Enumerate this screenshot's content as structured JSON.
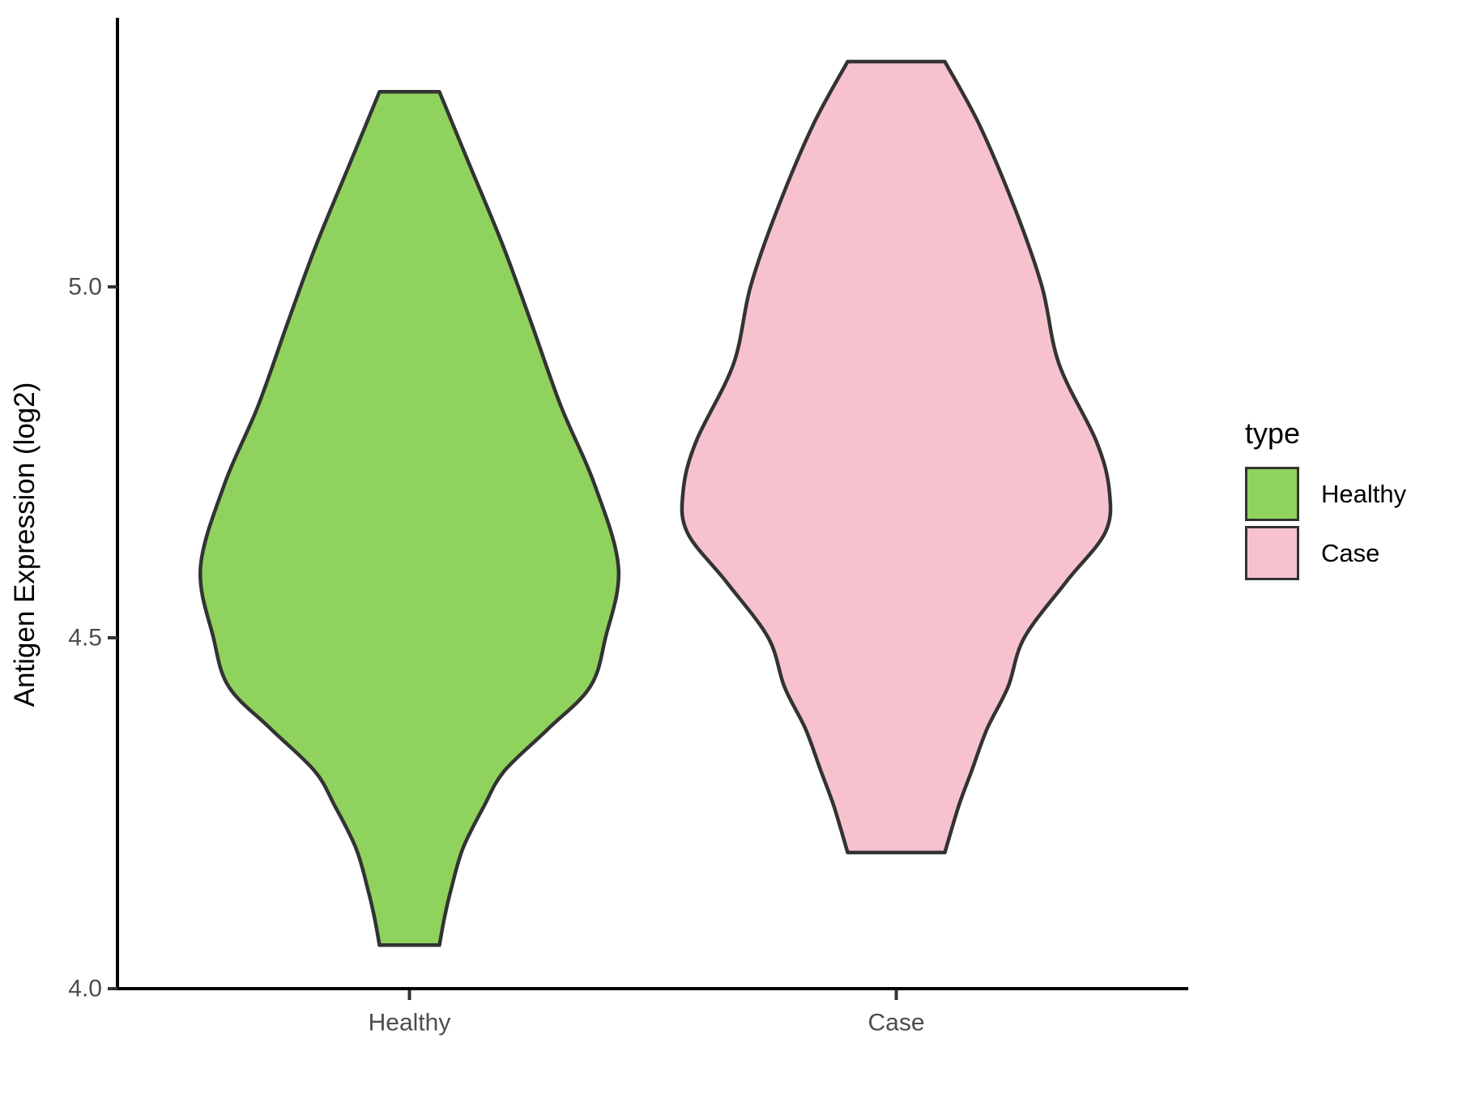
{
  "chart_data": {
    "type": "violin",
    "title": "",
    "xlabel": "",
    "ylabel": "Antigen Expression (log2)",
    "categories": [
      "Healthy",
      "Case"
    ],
    "y_ticks": [
      {
        "label": "5.0",
        "value": 5.0
      },
      {
        "label": "4.5",
        "value": 4.5
      },
      {
        "label": "4.0",
        "value": 4.0
      }
    ],
    "ylim": [
      4.0,
      5.4
    ],
    "grid": "off",
    "legend": {
      "title": "type",
      "position": "right",
      "entries": [
        {
          "label": "Healthy",
          "color": "#8FD35E"
        },
        {
          "label": "Case",
          "color": "#F7C2CE"
        }
      ]
    },
    "outline_color": "#333333",
    "series": [
      {
        "name": "Healthy",
        "fill": "#8FD35E",
        "category_index": 0,
        "value_range": [
          4.062,
          5.278
        ],
        "profile": [
          [
            5.278,
            37
          ],
          [
            5.18,
            72
          ],
          [
            5.06,
            115
          ],
          [
            4.95,
            150
          ],
          [
            4.83,
            187
          ],
          [
            4.72,
            228
          ],
          [
            4.6,
            258
          ],
          [
            4.5,
            242
          ],
          [
            4.43,
            223
          ],
          [
            4.37,
            171
          ],
          [
            4.31,
            117
          ],
          [
            4.26,
            92
          ],
          [
            4.2,
            66
          ],
          [
            4.14,
            51
          ],
          [
            4.1,
            43
          ],
          [
            4.062,
            37
          ]
        ]
      },
      {
        "name": "Case",
        "fill": "#F7C2CE",
        "category_index": 1,
        "value_range": [
          4.194,
          5.321
        ],
        "profile": [
          [
            5.321,
            60
          ],
          [
            5.23,
            103
          ],
          [
            5.11,
            147
          ],
          [
            5.0,
            180
          ],
          [
            4.89,
            201
          ],
          [
            4.78,
            247
          ],
          [
            4.71,
            263
          ],
          [
            4.65,
            258
          ],
          [
            4.58,
            210
          ],
          [
            4.5,
            158
          ],
          [
            4.43,
            138
          ],
          [
            4.37,
            112
          ],
          [
            4.31,
            93
          ],
          [
            4.26,
            77
          ],
          [
            4.194,
            60
          ]
        ]
      }
    ]
  }
}
